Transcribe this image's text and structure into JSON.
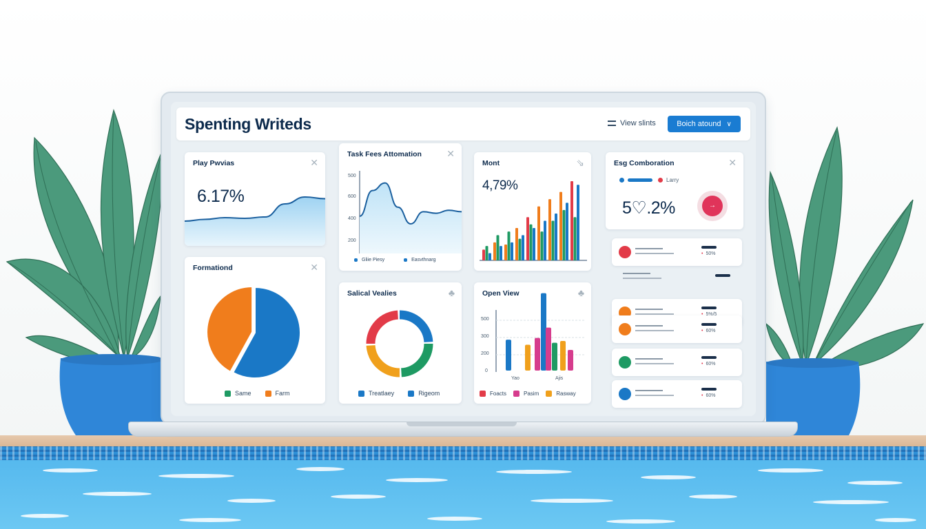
{
  "header": {
    "title": "Spenting Writeds",
    "view_link": "View slints",
    "primary_button": "Boich atound"
  },
  "cards": {
    "play": {
      "title": "Play Pwvias",
      "stat": "6.17%"
    },
    "task": {
      "title": "Task Fees Attomation",
      "ticks": [
        "500",
        "600",
        "400",
        "200"
      ],
      "legend": [
        "Gliie Piesy",
        "Easvthnarg"
      ]
    },
    "mont": {
      "title": "Mont",
      "stat": "4,79%"
    },
    "esg": {
      "title": "Esg Comboration",
      "legend": [
        "Larry"
      ],
      "stat": "5♡.2%"
    },
    "formationd": {
      "title": "Formationd",
      "legend": [
        "Same",
        "Farm"
      ]
    },
    "salical": {
      "title": "Salical Vealies",
      "legend": [
        "Treatlaey",
        "Rigeom"
      ]
    },
    "open_view": {
      "title": "Open View",
      "ticks": [
        "500",
        "300",
        "200",
        "0"
      ],
      "xlabels": [
        "Yao",
        "Ajis"
      ],
      "legend": [
        "Foacts",
        "Pasim",
        "Rasway"
      ]
    }
  },
  "list": [
    {
      "color": "#e23b48",
      "value": "50%"
    },
    {
      "color": "",
      "value": ""
    },
    {
      "color": "#f07d1c",
      "value": "5%/5"
    },
    {
      "color": "#f07d1c",
      "value": "60%"
    },
    {
      "color": "#1e9a63",
      "value": "60%"
    },
    {
      "color": "#1a78c6",
      "value": "60%"
    }
  ],
  "colors": {
    "accent": "#1a7cd2",
    "orange": "#f07d1c",
    "green": "#1e9a63",
    "red": "#e23b48",
    "magenta": "#d63c8d"
  },
  "chart_data": [
    {
      "type": "area",
      "title": "Play Pwvias",
      "y": [
        0.2,
        0.25,
        0.3,
        0.28,
        0.32,
        0.7,
        0.9,
        0.85
      ]
    },
    {
      "type": "line",
      "title": "Task Fees Attomation",
      "y": [
        300,
        470,
        520,
        360,
        250,
        330,
        320,
        340,
        330
      ]
    },
    {
      "type": "bar",
      "title": "Mont",
      "series": [
        {
          "values": [
            15,
            25,
            22,
            45,
            60,
            75,
            85,
            95,
            110
          ]
        },
        {
          "values": [
            20,
            35,
            40,
            30,
            50,
            40,
            55,
            70,
            60
          ]
        },
        {
          "values": [
            10,
            20,
            25,
            35,
            45,
            55,
            65,
            80,
            105
          ]
        }
      ]
    },
    {
      "type": "pie",
      "title": "Formationd",
      "values": [
        58,
        42
      ],
      "labels": [
        "Same",
        "Farm"
      ]
    },
    {
      "type": "pie",
      "title": "Salical Vealies",
      "donut": true,
      "values": [
        25,
        25,
        25,
        25
      ]
    },
    {
      "type": "bar",
      "title": "Open View",
      "ylim": [
        0,
        500
      ],
      "ticks": [
        "500",
        "300",
        "200",
        "0"
      ],
      "series": [
        {
          "values": [
            180,
            0,
            0,
            450
          ]
        },
        {
          "values": [
            0,
            150,
            250,
            0
          ]
        },
        {
          "values": [
            0,
            0,
            200,
            0
          ]
        }
      ]
    }
  ]
}
